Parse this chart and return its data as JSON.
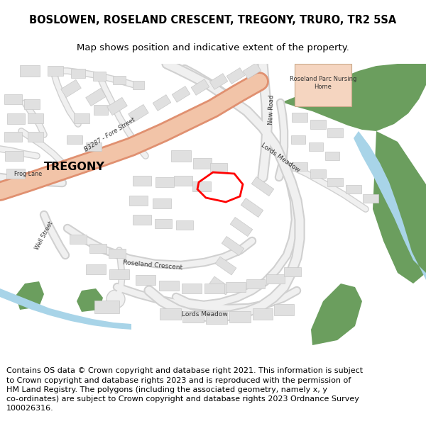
{
  "title_line1": "BOSLOWEN, ROSELAND CRESCENT, TREGONY, TRURO, TR2 5SA",
  "title_line2": "Map shows position and indicative extent of the property.",
  "footer_text": "Contains OS data © Crown copyright and database right 2021. This information is subject to Crown copyright and database rights 2023 and is reproduced with the permission of HM Land Registry. The polygons (including the associated geometry, namely x, y co-ordinates) are subject to Crown copyright and database rights 2023 Ordnance Survey 100026316.",
  "bg_color": "#ffffff",
  "map_bg": "#f5f5f5",
  "road_color": "#f0f0f0",
  "road_stroke": "#d0d0d0",
  "main_road_fill": "#f2c4a8",
  "main_road_stroke": "#e09070",
  "green_color": "#6b9e5e",
  "water_color": "#a8d4e8",
  "building_color": "#e0e0e0",
  "building_stroke": "#c8c8c8",
  "red_polygon_color": "#ff0000",
  "nursing_home_color": "#f5d5c0",
  "title_fontsize": 10.5,
  "subtitle_fontsize": 9.5,
  "footer_fontsize": 8.0,
  "label_fontsize": 7.0,
  "tregony_fontsize": 11.5
}
